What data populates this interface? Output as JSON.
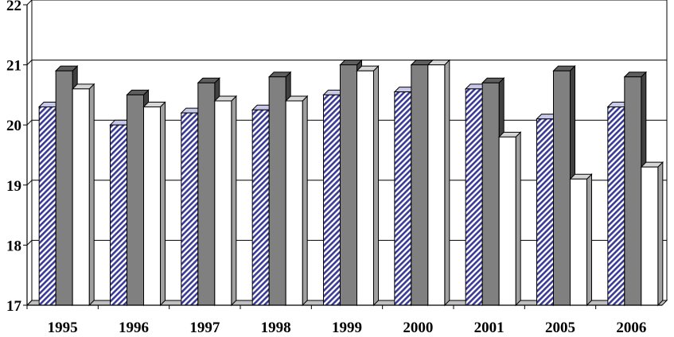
{
  "chart_data": {
    "type": "bar",
    "title": "",
    "xlabel": "",
    "ylabel": "",
    "categories": [
      "1995",
      "1996",
      "1997",
      "1998",
      "1999",
      "2000",
      "2001",
      "2005",
      "2006"
    ],
    "series": [
      {
        "values": [
          20.3,
          20.0,
          20.2,
          20.25,
          20.5,
          20.55,
          20.6,
          20.1,
          20.3
        ],
        "color": "#4a4aa0",
        "pattern": "diagonal-hatch"
      },
      {
        "values": [
          20.9,
          20.5,
          20.7,
          20.8,
          21.0,
          21.0,
          20.7,
          20.9,
          20.8
        ],
        "color": "#808080",
        "pattern": "solid"
      },
      {
        "values": [
          20.6,
          20.3,
          20.4,
          20.4,
          20.9,
          21.0,
          19.8,
          19.1,
          19.3
        ],
        "color": "#ffffff",
        "pattern": "solid"
      }
    ],
    "ylim": [
      17,
      22
    ],
    "yticks": [
      17,
      18,
      19,
      20,
      21,
      22
    ],
    "grid": true,
    "legend": "none",
    "style": "3d"
  }
}
